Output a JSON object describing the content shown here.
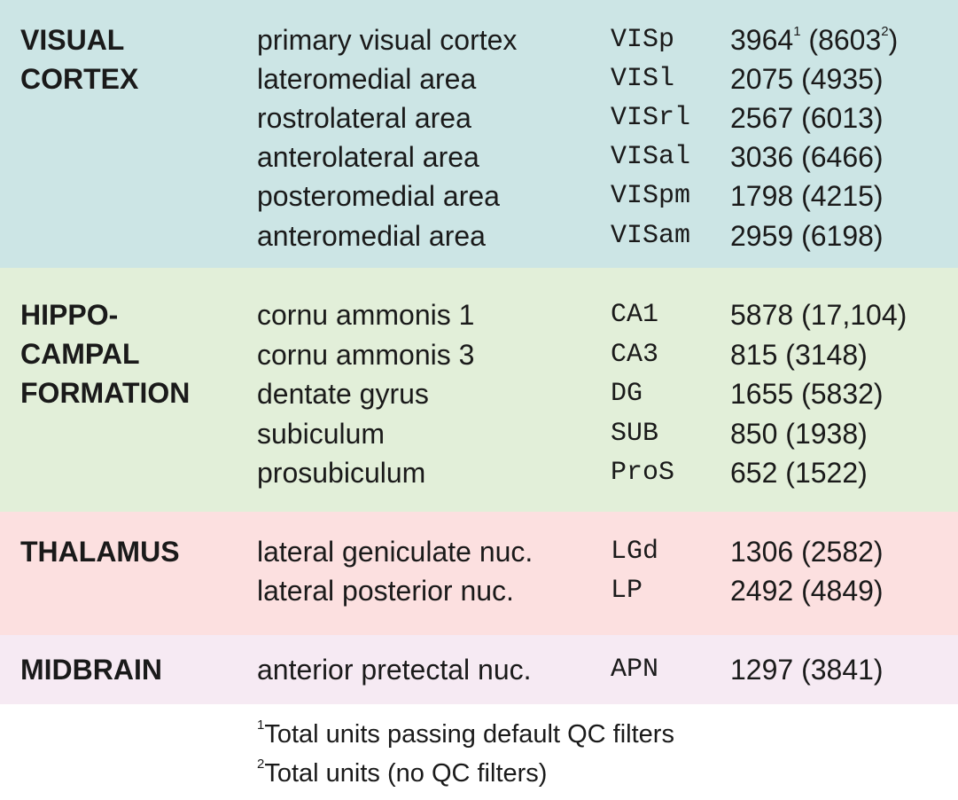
{
  "colors": {
    "visual": "#cce5e5",
    "hippocampal": "#e2efd9",
    "thalamus": "#fce0e0",
    "midbrain": "#f6eaf3",
    "text": "#1a1a1a"
  },
  "sections": [
    {
      "heading": [
        "VISUAL",
        "CORTEX"
      ],
      "rows": [
        {
          "name": "primary visual cortex",
          "abbr": "VISp",
          "units": "3964",
          "units_sup": "1",
          "total": "8603",
          "total_sup": "2"
        },
        {
          "name": "lateromedial area",
          "abbr": "VISl",
          "units": "2075",
          "total": "4935"
        },
        {
          "name": "rostrolateral area",
          "abbr": "VISrl",
          "units": "2567",
          "total": "6013"
        },
        {
          "name": "anterolateral area",
          "abbr": "VISal",
          "units": "3036",
          "total": "6466"
        },
        {
          "name": "posteromedial area",
          "abbr": "VISpm",
          "units": "1798",
          "total": "4215"
        },
        {
          "name": "anteromedial area",
          "abbr": "VISam",
          "units": "2959",
          "total": "6198"
        }
      ]
    },
    {
      "heading": [
        "HIPPO-",
        "CAMPAL",
        "FORMATION"
      ],
      "rows": [
        {
          "name": "cornu ammonis 1",
          "abbr": "CA1",
          "units": "5878",
          "total": "17,104"
        },
        {
          "name": "cornu ammonis 3",
          "abbr": "CA3",
          "units": "815",
          "total": "3148"
        },
        {
          "name": "dentate gyrus",
          "abbr": "DG",
          "units": "1655",
          "total": "5832"
        },
        {
          "name": "subiculum",
          "abbr": "SUB",
          "units": "850",
          "total": "1938"
        },
        {
          "name": "prosubiculum",
          "abbr": "ProS",
          "units": "652",
          "total": "1522"
        }
      ]
    },
    {
      "heading": [
        "THALAMUS"
      ],
      "rows": [
        {
          "name": "lateral geniculate nuc.",
          "abbr": "LGd",
          "units": "1306",
          "total": "2582"
        },
        {
          "name": "lateral posterior nuc.",
          "abbr": "LP",
          "units": "2492",
          "total": "4849"
        }
      ]
    },
    {
      "heading": [
        "MIDBRAIN"
      ],
      "rows": [
        {
          "name": "anterior pretectal nuc.",
          "abbr": "APN",
          "units": "1297",
          "total": "3841"
        }
      ]
    }
  ],
  "footnotes": [
    {
      "sup": "1",
      "text": "Total units passing default QC filters"
    },
    {
      "sup": "2",
      "text": "Total units (no QC filters)"
    }
  ]
}
